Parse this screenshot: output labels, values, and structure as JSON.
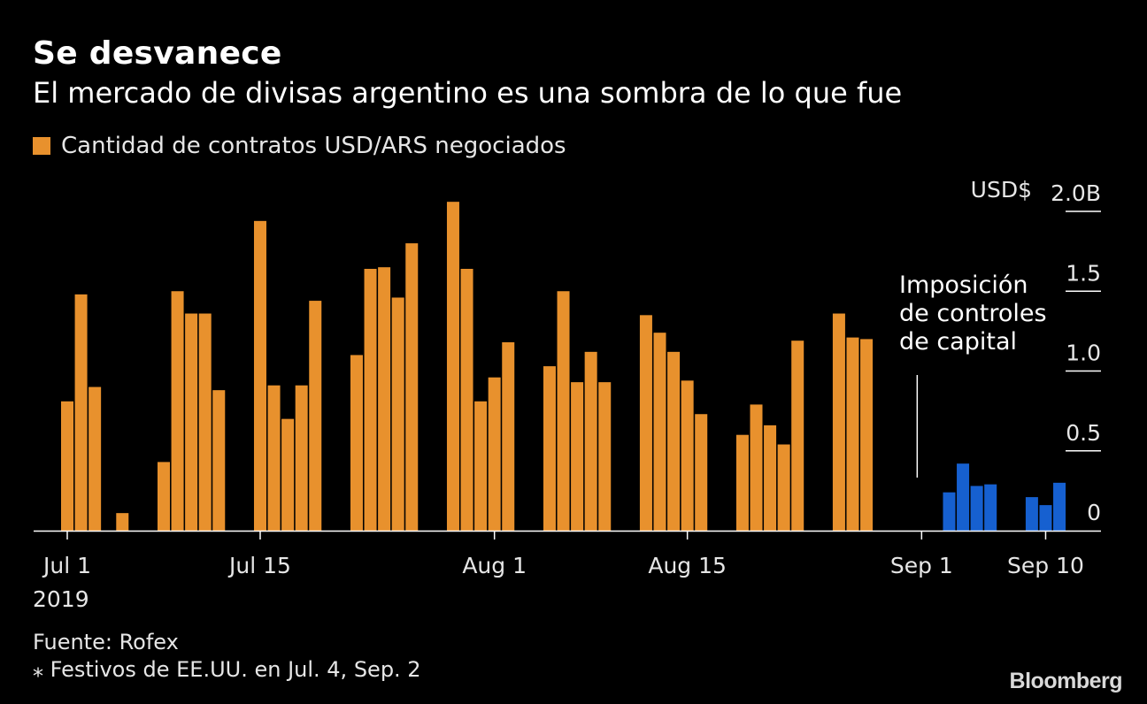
{
  "title": "Se desvanece",
  "subtitle": "El mercado de divisas argentino es una sombra de lo que fue",
  "legend": {
    "label": "Cantidad de contratos USD/ARS negociados"
  },
  "source": "Fuente: Rofex",
  "note": "⁎ Festivos de EE.UU. en Jul. 4, Sep. 2",
  "brand": "Bloomberg",
  "colors": {
    "pre": "#e8912d",
    "post": "#1660d0",
    "background": "#000000"
  },
  "chart_data": {
    "type": "bar",
    "unit": "USD$",
    "y_max_label": "2.0B",
    "yticks": [
      {
        "value": 0,
        "label": "0"
      },
      {
        "value": 0.5,
        "label": "0.5"
      },
      {
        "value": 1.0,
        "label": "1.0"
      },
      {
        "value": 1.5,
        "label": "1.5"
      },
      {
        "value": 2.0,
        "label": "2.0B"
      }
    ],
    "ylim": [
      0,
      2.0
    ],
    "xticks": [
      {
        "date": "2019-07-01",
        "label": "Jul 1",
        "sublabel": "2019"
      },
      {
        "date": "2019-07-15",
        "label": "Jul 15",
        "sublabel": ""
      },
      {
        "date": "2019-08-01",
        "label": "Aug 1",
        "sublabel": ""
      },
      {
        "date": "2019-08-15",
        "label": "Aug 15",
        "sublabel": ""
      },
      {
        "date": "2019-09-01",
        "label": "Sep 1",
        "sublabel": ""
      },
      {
        "date": "2019-09-10",
        "label": "Sep 10",
        "sublabel": ""
      }
    ],
    "annotation": {
      "date": "2019-09-01",
      "lines": [
        "Imposición",
        "de controles",
        "de capital"
      ]
    },
    "series": [
      {
        "color": "#e8912d",
        "points": [
          [
            "2019-07-01",
            0.81
          ],
          [
            "2019-07-02",
            1.48
          ],
          [
            "2019-07-03",
            0.9
          ],
          [
            "2019-07-05",
            0.11
          ],
          [
            "2019-07-08",
            0.43
          ],
          [
            "2019-07-09",
            1.5
          ],
          [
            "2019-07-10",
            1.36
          ],
          [
            "2019-07-11",
            1.36
          ],
          [
            "2019-07-12",
            0.88
          ],
          [
            "2019-07-15",
            1.94
          ],
          [
            "2019-07-16",
            0.91
          ],
          [
            "2019-07-17",
            0.7
          ],
          [
            "2019-07-18",
            0.91
          ],
          [
            "2019-07-19",
            1.44
          ],
          [
            "2019-07-22",
            1.1
          ],
          [
            "2019-07-23",
            1.64
          ],
          [
            "2019-07-24",
            1.65
          ],
          [
            "2019-07-25",
            1.46
          ],
          [
            "2019-07-26",
            1.8
          ],
          [
            "2019-07-29",
            2.06
          ],
          [
            "2019-07-30",
            1.64
          ],
          [
            "2019-07-31",
            0.81
          ],
          [
            "2019-08-01",
            0.96
          ],
          [
            "2019-08-02",
            1.18
          ],
          [
            "2019-08-05",
            1.03
          ],
          [
            "2019-08-06",
            1.5
          ],
          [
            "2019-08-07",
            0.93
          ],
          [
            "2019-08-08",
            1.12
          ],
          [
            "2019-08-09",
            0.93
          ],
          [
            "2019-08-12",
            1.35
          ],
          [
            "2019-08-13",
            1.24
          ],
          [
            "2019-08-14",
            1.12
          ],
          [
            "2019-08-15",
            0.94
          ],
          [
            "2019-08-16",
            0.73
          ],
          [
            "2019-08-19",
            0.6
          ],
          [
            "2019-08-20",
            0.79
          ],
          [
            "2019-08-21",
            0.66
          ],
          [
            "2019-08-22",
            0.54
          ],
          [
            "2019-08-23",
            1.19
          ],
          [
            "2019-08-26",
            1.36
          ],
          [
            "2019-08-27",
            1.21
          ],
          [
            "2019-08-28",
            1.2
          ]
        ]
      },
      {
        "color": "#1660d0",
        "points": [
          [
            "2019-09-03",
            0.24
          ],
          [
            "2019-09-04",
            0.42
          ],
          [
            "2019-09-05",
            0.28
          ],
          [
            "2019-09-06",
            0.29
          ],
          [
            "2019-09-09",
            0.21
          ],
          [
            "2019-09-10",
            0.16
          ],
          [
            "2019-09-11",
            0.3
          ]
        ]
      }
    ]
  }
}
